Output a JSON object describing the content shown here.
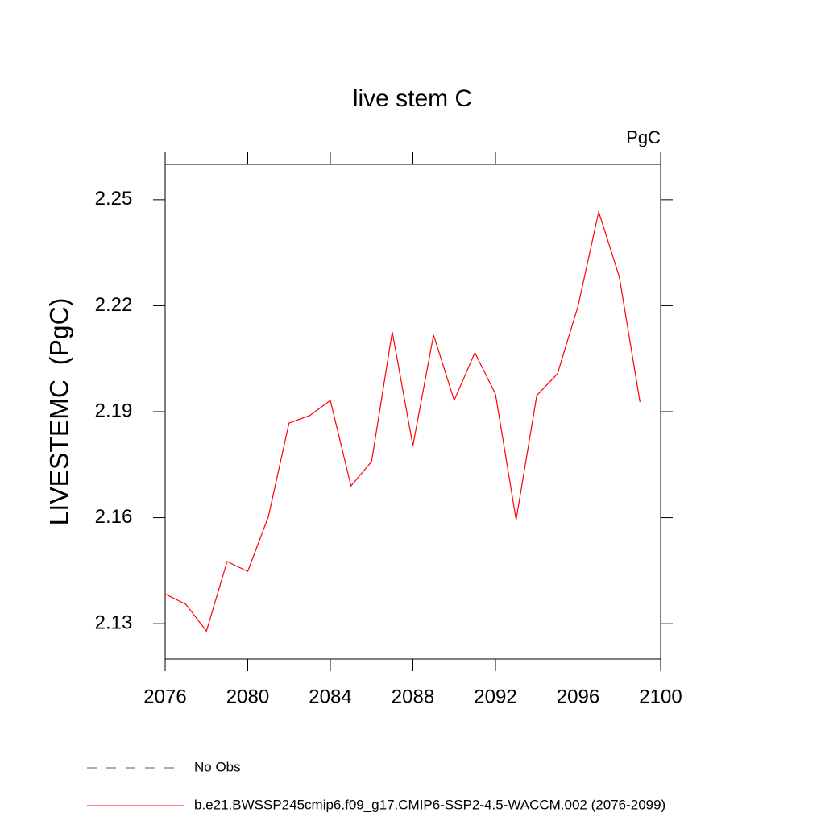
{
  "chart_data": {
    "type": "line",
    "title": "live stem C",
    "units": "PgC",
    "y_label": "LIVESTEMC  (PgC)",
    "x": [
      2076,
      2077,
      2078,
      2079,
      2080,
      2081,
      2082,
      2083,
      2084,
      2085,
      2086,
      2087,
      2088,
      2089,
      2090,
      2091,
      2092,
      2093,
      2094,
      2095,
      2096,
      2097,
      2098,
      2099
    ],
    "series": [
      {
        "name": "No Obs",
        "color": "#5a4fa0",
        "dashed": true,
        "values": [
          null,
          null,
          null,
          null,
          null,
          null,
          null,
          null,
          null,
          null,
          null,
          null,
          null,
          null,
          null,
          null,
          null,
          null,
          null,
          null,
          null,
          null,
          null,
          null
        ]
      },
      {
        "name": "b.e21.BWSSP245cmip6.f09_g17.CMIP6-SSP2-4.5-WACCM.002 (2076-2099)",
        "color": "#ff0000",
        "dashed": false,
        "values": [
          2.1384,
          2.1355,
          2.1279,
          2.1476,
          2.1448,
          2.1603,
          2.1868,
          2.1889,
          2.1932,
          2.169,
          2.1759,
          2.2126,
          2.1804,
          2.2117,
          2.1932,
          2.2067,
          2.195,
          2.1594,
          2.1946,
          2.2007,
          2.2199,
          2.2466,
          2.2281,
          2.1927
        ]
      }
    ],
    "xlim": [
      2076,
      2100
    ],
    "xticks": [
      2076,
      2080,
      2084,
      2088,
      2092,
      2096,
      2100
    ],
    "ylim": [
      2.12,
      2.26
    ],
    "yticks": [
      2.13,
      2.16,
      2.19,
      2.22,
      2.25
    ]
  }
}
